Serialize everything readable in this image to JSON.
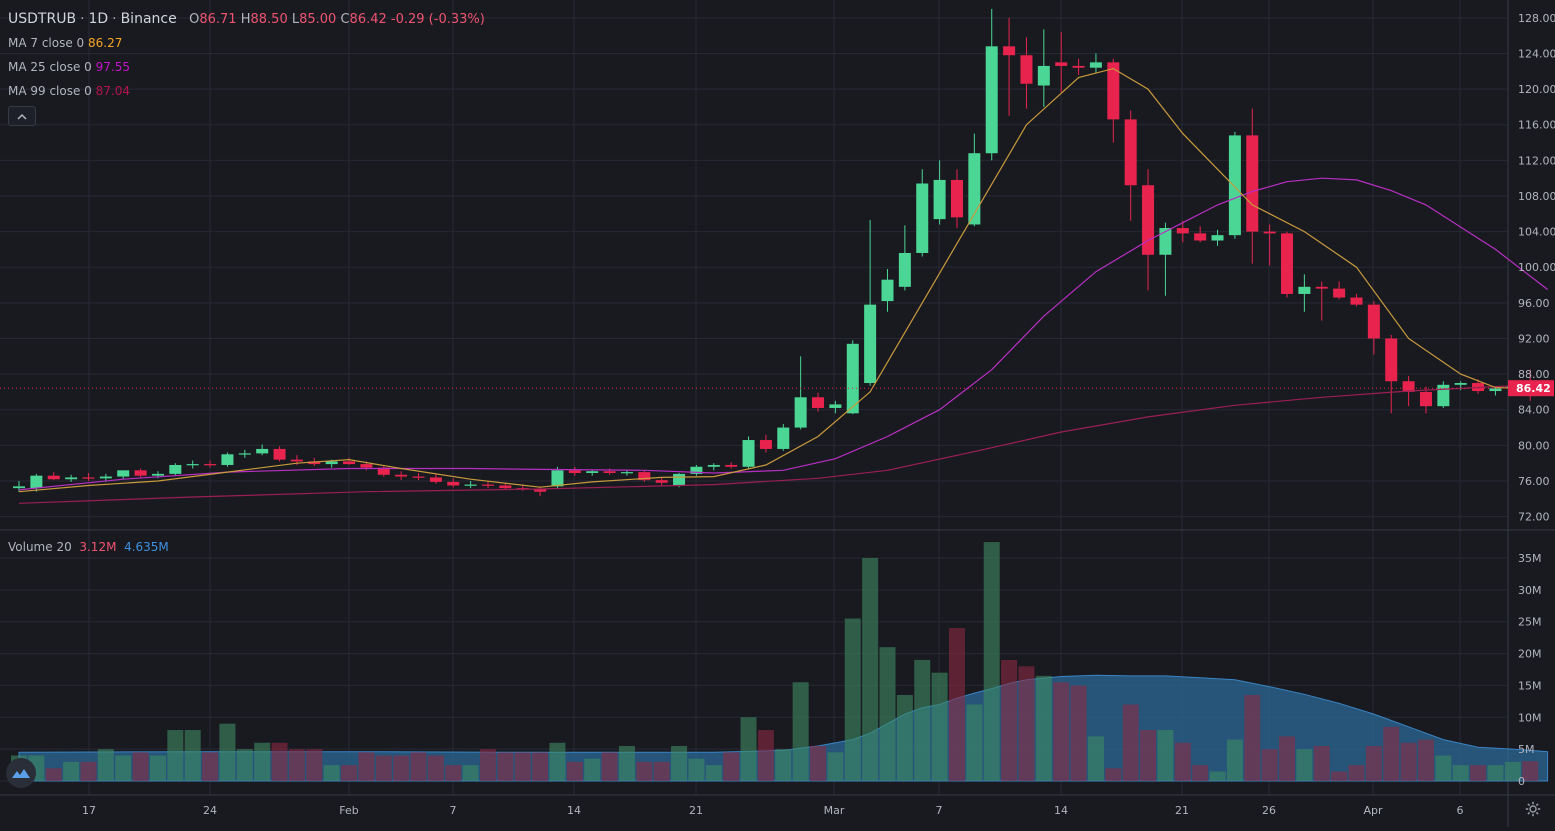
{
  "header": {
    "symbol": "USDTRUB",
    "interval": "1D",
    "exchange": "Binance",
    "sep1": "·",
    "sep2": "·",
    "o_label": "O",
    "o_value": "86.71",
    "h_label": "H",
    "h_value": "88.50",
    "l_label": "L",
    "l_value": "85.00",
    "c_label": "C",
    "c_value": "86.42",
    "change": "-0.29 (-0.33%)"
  },
  "indicators": [
    {
      "label": "MA 7 close 0",
      "value": "86.27",
      "color": "#f5a623"
    },
    {
      "label": "MA 25 close 0",
      "value": "97.55",
      "color": "#c313c8"
    },
    {
      "label": "MA 99 close 0",
      "value": "87.04",
      "color": "#b3124c"
    }
  ],
  "collapse_icon": "chevron-up-icon",
  "volume_legend": {
    "label": "Volume 20",
    "value1": "3.12M",
    "value2": "4.635M"
  },
  "price_axis": {
    "ticks": [
      "128.00",
      "124.00",
      "120.00",
      "116.00",
      "112.00",
      "108.00",
      "104.00",
      "100.00",
      "96.00",
      "92.00",
      "88.00",
      "84.00",
      "80.00",
      "76.00",
      "72.00"
    ],
    "current_price": "86.42"
  },
  "volume_axis": {
    "ticks": [
      "35M",
      "30M",
      "25M",
      "20M",
      "15M",
      "10M",
      "5M",
      "0"
    ]
  },
  "time_axis": {
    "labels": [
      "17",
      "24",
      "Feb",
      "7",
      "14",
      "21",
      "Mar",
      "7",
      "14",
      "21",
      "26",
      "Apr",
      "6"
    ]
  },
  "colors": {
    "background": "#191a20",
    "up": "#4bd696",
    "down": "#e8244e",
    "ma7": "#c89a3c",
    "ma25": "#b72fc2",
    "ma99": "#9a1f55",
    "grid": "#262834",
    "volume_ma_fill": "#2b6a97"
  },
  "chart_data": {
    "type": "candlestick",
    "ylim": [
      70.5,
      130.0
    ],
    "volume_ylim": [
      0,
      37.5
    ],
    "candles": [
      {
        "o": 75.2,
        "h": 76.0,
        "l": 74.8,
        "c": 75.4,
        "v": 4.0
      },
      {
        "o": 75.2,
        "h": 76.8,
        "l": 74.8,
        "c": 76.6,
        "v": 4.0
      },
      {
        "o": 76.6,
        "h": 77.0,
        "l": 76.1,
        "c": 76.2,
        "v": 2.0
      },
      {
        "o": 76.2,
        "h": 76.7,
        "l": 75.9,
        "c": 76.4,
        "v": 3.0
      },
      {
        "o": 76.4,
        "h": 76.9,
        "l": 76.0,
        "c": 76.3,
        "v": 3.0
      },
      {
        "o": 76.3,
        "h": 76.8,
        "l": 75.9,
        "c": 76.5,
        "v": 5.0
      },
      {
        "o": 76.5,
        "h": 77.1,
        "l": 76.2,
        "c": 77.2,
        "v": 4.0
      },
      {
        "o": 77.2,
        "h": 77.4,
        "l": 76.4,
        "c": 76.6,
        "v": 4.5
      },
      {
        "o": 76.6,
        "h": 77.1,
        "l": 76.3,
        "c": 76.8,
        "v": 4.0
      },
      {
        "o": 76.8,
        "h": 78.0,
        "l": 76.6,
        "c": 77.8,
        "v": 8.0
      },
      {
        "o": 77.8,
        "h": 78.3,
        "l": 77.4,
        "c": 77.9,
        "v": 8.0
      },
      {
        "o": 77.9,
        "h": 78.3,
        "l": 77.5,
        "c": 77.8,
        "v": 4.5
      },
      {
        "o": 77.8,
        "h": 79.2,
        "l": 77.6,
        "c": 79.0,
        "v": 9.0
      },
      {
        "o": 79.0,
        "h": 79.5,
        "l": 78.6,
        "c": 79.1,
        "v": 5.0
      },
      {
        "o": 79.1,
        "h": 80.1,
        "l": 78.9,
        "c": 79.6,
        "v": 6.0
      },
      {
        "o": 79.6,
        "h": 79.9,
        "l": 78.2,
        "c": 78.4,
        "v": 6.0
      },
      {
        "o": 78.4,
        "h": 78.9,
        "l": 77.8,
        "c": 78.2,
        "v": 5.0
      },
      {
        "o": 78.2,
        "h": 78.6,
        "l": 77.7,
        "c": 77.9,
        "v": 5.0
      },
      {
        "o": 77.9,
        "h": 78.4,
        "l": 77.5,
        "c": 78.2,
        "v": 2.5
      },
      {
        "o": 78.2,
        "h": 78.6,
        "l": 77.8,
        "c": 77.9,
        "v": 2.5
      },
      {
        "o": 77.9,
        "h": 78.2,
        "l": 77.2,
        "c": 77.5,
        "v": 4.5
      },
      {
        "o": 77.5,
        "h": 77.8,
        "l": 76.5,
        "c": 76.7,
        "v": 4.0
      },
      {
        "o": 76.7,
        "h": 77.1,
        "l": 76.1,
        "c": 76.5,
        "v": 4.0
      },
      {
        "o": 76.5,
        "h": 76.9,
        "l": 76.1,
        "c": 76.4,
        "v": 4.5
      },
      {
        "o": 76.4,
        "h": 76.8,
        "l": 75.7,
        "c": 75.9,
        "v": 4.0
      },
      {
        "o": 75.9,
        "h": 76.3,
        "l": 75.3,
        "c": 75.5,
        "v": 2.5
      },
      {
        "o": 75.5,
        "h": 76.0,
        "l": 75.2,
        "c": 75.6,
        "v": 2.5
      },
      {
        "o": 75.6,
        "h": 75.9,
        "l": 75.2,
        "c": 75.5,
        "v": 5.0
      },
      {
        "o": 75.5,
        "h": 75.8,
        "l": 75.0,
        "c": 75.2,
        "v": 4.5
      },
      {
        "o": 75.2,
        "h": 75.6,
        "l": 74.9,
        "c": 75.1,
        "v": 4.5
      },
      {
        "o": 75.1,
        "h": 75.4,
        "l": 74.3,
        "c": 74.8,
        "v": 4.5
      },
      {
        "o": 75.4,
        "h": 77.6,
        "l": 75.2,
        "c": 77.2,
        "v": 6.0
      },
      {
        "o": 77.2,
        "h": 77.6,
        "l": 76.6,
        "c": 76.9,
        "v": 3.0
      },
      {
        "o": 76.9,
        "h": 77.3,
        "l": 76.6,
        "c": 77.1,
        "v": 3.5
      },
      {
        "o": 77.1,
        "h": 77.4,
        "l": 76.7,
        "c": 76.9,
        "v": 4.5
      },
      {
        "o": 76.9,
        "h": 77.3,
        "l": 76.6,
        "c": 77.0,
        "v": 5.5
      },
      {
        "o": 77.0,
        "h": 77.2,
        "l": 75.9,
        "c": 76.1,
        "v": 3.0
      },
      {
        "o": 76.1,
        "h": 76.4,
        "l": 75.5,
        "c": 75.8,
        "v": 3.0
      },
      {
        "o": 75.5,
        "h": 76.9,
        "l": 75.3,
        "c": 76.8,
        "v": 5.5
      },
      {
        "o": 76.8,
        "h": 77.8,
        "l": 76.6,
        "c": 77.6,
        "v": 3.5
      },
      {
        "o": 77.6,
        "h": 78.0,
        "l": 77.2,
        "c": 77.8,
        "v": 2.5
      },
      {
        "o": 77.8,
        "h": 78.1,
        "l": 77.4,
        "c": 77.6,
        "v": 4.5
      },
      {
        "o": 77.6,
        "h": 81.0,
        "l": 77.4,
        "c": 80.6,
        "v": 10.0
      },
      {
        "o": 80.6,
        "h": 81.2,
        "l": 79.2,
        "c": 79.6,
        "v": 8.0
      },
      {
        "o": 79.6,
        "h": 82.4,
        "l": 79.4,
        "c": 82.0,
        "v": 5.0
      },
      {
        "o": 82.0,
        "h": 90.0,
        "l": 81.8,
        "c": 85.4,
        "v": 15.5
      },
      {
        "o": 85.4,
        "h": 85.9,
        "l": 83.8,
        "c": 84.2,
        "v": 5.5
      },
      {
        "o": 84.2,
        "h": 85.0,
        "l": 83.6,
        "c": 84.6,
        "v": 4.5
      },
      {
        "o": 83.6,
        "h": 91.8,
        "l": 83.5,
        "c": 91.4,
        "v": 25.5
      },
      {
        "o": 87.0,
        "h": 105.3,
        "l": 86.7,
        "c": 95.8,
        "v": 35.0
      },
      {
        "o": 96.2,
        "h": 99.8,
        "l": 95.0,
        "c": 98.6,
        "v": 21.0
      },
      {
        "o": 97.8,
        "h": 104.7,
        "l": 97.4,
        "c": 101.6,
        "v": 13.5
      },
      {
        "o": 101.6,
        "h": 111.0,
        "l": 101.2,
        "c": 109.4,
        "v": 19.0
      },
      {
        "o": 105.4,
        "h": 112.0,
        "l": 104.8,
        "c": 109.8,
        "v": 17.0
      },
      {
        "o": 109.8,
        "h": 111.0,
        "l": 104.4,
        "c": 105.6,
        "v": 24.0
      },
      {
        "o": 104.8,
        "h": 115.0,
        "l": 104.6,
        "c": 112.8,
        "v": 12.0
      },
      {
        "o": 112.8,
        "h": 129.0,
        "l": 112.0,
        "c": 124.8,
        "v": 37.5
      },
      {
        "o": 124.8,
        "h": 128.0,
        "l": 117.0,
        "c": 123.8,
        "v": 19.0
      },
      {
        "o": 123.8,
        "h": 125.8,
        "l": 117.8,
        "c": 120.6,
        "v": 18.0
      },
      {
        "o": 120.4,
        "h": 126.7,
        "l": 118.0,
        "c": 122.6,
        "v": 16.5
      },
      {
        "o": 123.0,
        "h": 126.4,
        "l": 119.6,
        "c": 122.6,
        "v": 15.5
      },
      {
        "o": 122.6,
        "h": 123.4,
        "l": 121.6,
        "c": 122.4,
        "v": 15.0
      },
      {
        "o": 122.4,
        "h": 124.0,
        "l": 121.8,
        "c": 123.0,
        "v": 7.0
      },
      {
        "o": 123.0,
        "h": 123.4,
        "l": 114.0,
        "c": 116.6,
        "v": 2.0
      },
      {
        "o": 116.6,
        "h": 117.6,
        "l": 105.2,
        "c": 109.2,
        "v": 12.0
      },
      {
        "o": 109.2,
        "h": 111.0,
        "l": 97.4,
        "c": 101.4,
        "v": 8.0
      },
      {
        "o": 101.4,
        "h": 105.0,
        "l": 96.8,
        "c": 104.4,
        "v": 8.0
      },
      {
        "o": 104.4,
        "h": 105.2,
        "l": 102.8,
        "c": 103.8,
        "v": 6.0
      },
      {
        "o": 103.8,
        "h": 104.6,
        "l": 102.8,
        "c": 103.0,
        "v": 2.5
      },
      {
        "o": 103.0,
        "h": 104.2,
        "l": 102.4,
        "c": 103.6,
        "v": 1.5
      },
      {
        "o": 103.6,
        "h": 115.2,
        "l": 103.2,
        "c": 114.8,
        "v": 6.5
      },
      {
        "o": 114.8,
        "h": 117.8,
        "l": 100.4,
        "c": 104.0,
        "v": 13.5
      },
      {
        "o": 104.0,
        "h": 104.8,
        "l": 100.2,
        "c": 103.8,
        "v": 5.0
      },
      {
        "o": 103.8,
        "h": 104.0,
        "l": 96.6,
        "c": 97.0,
        "v": 7.0
      },
      {
        "o": 97.0,
        "h": 99.2,
        "l": 95.0,
        "c": 97.8,
        "v": 5.0
      },
      {
        "o": 97.8,
        "h": 98.4,
        "l": 94.0,
        "c": 97.6,
        "v": 5.5
      },
      {
        "o": 97.6,
        "h": 98.4,
        "l": 96.4,
        "c": 96.6,
        "v": 1.5
      },
      {
        "o": 96.6,
        "h": 97.0,
        "l": 95.6,
        "c": 95.8,
        "v": 2.5
      },
      {
        "o": 95.8,
        "h": 96.2,
        "l": 90.2,
        "c": 92.0,
        "v": 5.5
      },
      {
        "o": 92.0,
        "h": 92.4,
        "l": 83.6,
        "c": 87.2,
        "v": 8.5
      },
      {
        "o": 87.2,
        "h": 87.8,
        "l": 84.4,
        "c": 86.0,
        "v": 6.0
      },
      {
        "o": 86.0,
        "h": 86.6,
        "l": 83.6,
        "c": 84.4,
        "v": 6.5
      },
      {
        "o": 84.4,
        "h": 87.2,
        "l": 84.2,
        "c": 86.8,
        "v": 4.0
      },
      {
        "o": 86.8,
        "h": 87.2,
        "l": 86.2,
        "c": 87.0,
        "v": 2.5
      },
      {
        "o": 87.0,
        "h": 87.4,
        "l": 85.8,
        "c": 86.1,
        "v": 2.5
      },
      {
        "o": 86.1,
        "h": 86.6,
        "l": 85.6,
        "c": 86.4,
        "v": 2.5
      },
      {
        "o": 86.4,
        "h": 86.9,
        "l": 86.0,
        "c": 86.6,
        "v": 3.0
      },
      {
        "o": 86.71,
        "h": 88.5,
        "l": 85.0,
        "c": 86.42,
        "v": 3.12
      }
    ],
    "ma7": [
      [
        0,
        74.8
      ],
      [
        4,
        75.5
      ],
      [
        8,
        76.0
      ],
      [
        12,
        77.0
      ],
      [
        16,
        78.0
      ],
      [
        19,
        78.4
      ],
      [
        22,
        77.4
      ],
      [
        26,
        76.2
      ],
      [
        30,
        75.3
      ],
      [
        33,
        75.9
      ],
      [
        37,
        76.4
      ],
      [
        40,
        76.5
      ],
      [
        43,
        77.8
      ],
      [
        46,
        81.0
      ],
      [
        49,
        86.0
      ],
      [
        52,
        96.0
      ],
      [
        55,
        106.0
      ],
      [
        58,
        116.0
      ],
      [
        61,
        121.3
      ],
      [
        63,
        122.3
      ],
      [
        65,
        120.0
      ],
      [
        67,
        115.0
      ],
      [
        69,
        111.0
      ],
      [
        71,
        107.0
      ],
      [
        74,
        104.0
      ],
      [
        77,
        100.0
      ],
      [
        80,
        92.0
      ],
      [
        83,
        88.0
      ],
      [
        85,
        86.5
      ],
      [
        88,
        86.3
      ]
    ],
    "ma25": [
      [
        0,
        75.0
      ],
      [
        6,
        76.2
      ],
      [
        12,
        77.0
      ],
      [
        19,
        77.4
      ],
      [
        26,
        77.4
      ],
      [
        30,
        77.3
      ],
      [
        36,
        77.2
      ],
      [
        40,
        76.9
      ],
      [
        44,
        77.2
      ],
      [
        47,
        78.5
      ],
      [
        50,
        81.0
      ],
      [
        53,
        84.0
      ],
      [
        56,
        88.5
      ],
      [
        59,
        94.5
      ],
      [
        62,
        99.5
      ],
      [
        65,
        103.0
      ],
      [
        67,
        105.0
      ],
      [
        69,
        107.0
      ],
      [
        71,
        108.5
      ],
      [
        73,
        109.6
      ],
      [
        75,
        110.0
      ],
      [
        77,
        109.8
      ],
      [
        79,
        108.6
      ],
      [
        81,
        107.0
      ],
      [
        83,
        104.5
      ],
      [
        85,
        102.0
      ],
      [
        88,
        97.5
      ]
    ],
    "ma99": [
      [
        0,
        73.5
      ],
      [
        10,
        74.2
      ],
      [
        20,
        74.8
      ],
      [
        30,
        75.1
      ],
      [
        40,
        75.6
      ],
      [
        46,
        76.3
      ],
      [
        50,
        77.2
      ],
      [
        55,
        79.3
      ],
      [
        60,
        81.5
      ],
      [
        65,
        83.2
      ],
      [
        70,
        84.5
      ],
      [
        75,
        85.4
      ],
      [
        80,
        86.1
      ],
      [
        85,
        86.6
      ],
      [
        88,
        86.9
      ]
    ],
    "volume_ma": [
      [
        0,
        4.5
      ],
      [
        10,
        4.6
      ],
      [
        20,
        4.6
      ],
      [
        30,
        4.5
      ],
      [
        40,
        4.5
      ],
      [
        44,
        4.8
      ],
      [
        46,
        5.5
      ],
      [
        48,
        6.5
      ],
      [
        49,
        7.5
      ],
      [
        50,
        9.0
      ],
      [
        51,
        10.5
      ],
      [
        52,
        11.5
      ],
      [
        53,
        12.0
      ],
      [
        54,
        13.0
      ],
      [
        55,
        13.8
      ],
      [
        56,
        14.5
      ],
      [
        57,
        15.3
      ],
      [
        58,
        15.9
      ],
      [
        60,
        16.4
      ],
      [
        62,
        16.6
      ],
      [
        64,
        16.5
      ],
      [
        66,
        16.5
      ],
      [
        68,
        16.2
      ],
      [
        70,
        15.9
      ],
      [
        72,
        14.8
      ],
      [
        74,
        13.6
      ],
      [
        76,
        12.2
      ],
      [
        78,
        10.5
      ],
      [
        80,
        8.5
      ],
      [
        82,
        6.5
      ],
      [
        84,
        5.3
      ],
      [
        86,
        5.0
      ],
      [
        88,
        4.6
      ]
    ]
  }
}
